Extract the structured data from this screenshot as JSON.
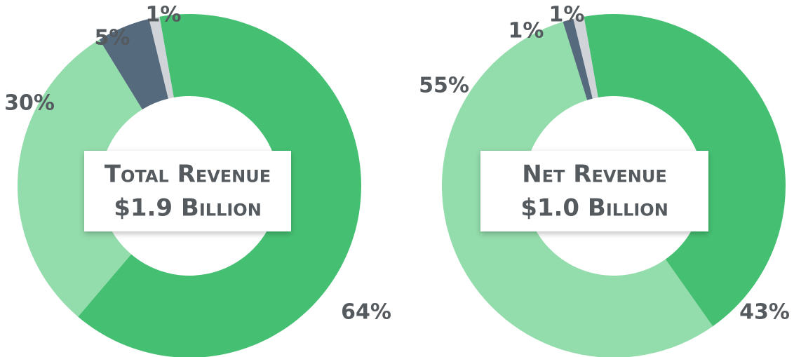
{
  "chart_data": [
    {
      "type": "pie",
      "donut": true,
      "title": "Total Revenue",
      "subtitle": "$1.9 Billion",
      "values": [
        64,
        30,
        5,
        1
      ],
      "value_labels": [
        "64%",
        "30%",
        "5%",
        "1%"
      ],
      "colors": [
        "#45c072",
        "#93dcab",
        "#566a7e",
        "#d0d4d8"
      ]
    },
    {
      "type": "pie",
      "donut": true,
      "title": "Net Revenue",
      "subtitle": "$1.0 Billion",
      "values": [
        43,
        55,
        1,
        1
      ],
      "value_labels": [
        "43%",
        "55%",
        "1%",
        "1%"
      ],
      "colors": [
        "#45c072",
        "#93dcab",
        "#566a7e",
        "#d0d4d8"
      ]
    }
  ]
}
